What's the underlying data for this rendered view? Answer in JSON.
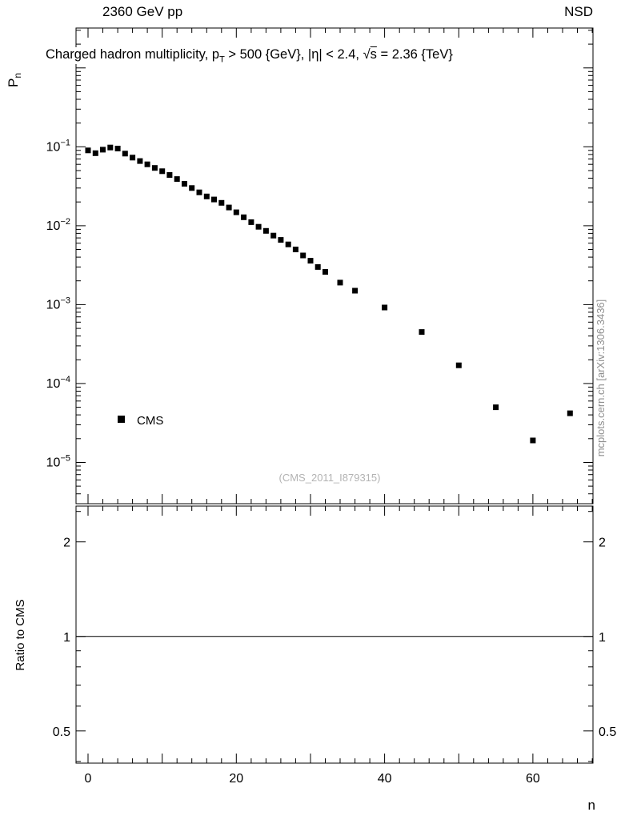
{
  "header": {
    "left": "2360 GeV pp",
    "right": "NSD"
  },
  "chart_data": {
    "type": "scatter",
    "title": "Charged hadron multiplicity, p_T > 500 {GeV}, |eta| < 2.4, sqrt(s) = 2.36 {TeV}",
    "title_parts": {
      "p1": "Charged hadron multiplicity, p",
      "p1_sub": "T",
      "p2": " > 500 {GeV}, |η| < 2.4, ",
      "sqrt_sym": "√",
      "sqrt_arg": "s",
      "p3": " = 2.36 {TeV}"
    },
    "xlabel": "n",
    "ylabel_main": "P",
    "ylabel_sub": "n",
    "ratio_ylabel": "Ratio to CMS",
    "watermark": "(CMS_2011_I879315)",
    "side_note": "mcplots.cern.ch [arXiv:1306.3436]",
    "legend": [
      {
        "label": "CMS",
        "marker": "filled-square",
        "color": "#000000"
      }
    ],
    "legend_position": "inside-left",
    "grid": false,
    "x_range": [
      -1.62,
      68.1
    ],
    "x_major_ticks": [
      0,
      20,
      40,
      60
    ],
    "x_major_step": 10,
    "x_minor_step": 2,
    "y_scale": "log",
    "y_range": [
      3e-06,
      3.2
    ],
    "y_decades": [
      -5,
      -4,
      -3,
      -2,
      -1
    ],
    "ratio_scale": "log",
    "ratio_range": [
      0.395,
      2.6
    ],
    "ratio_ticks": [
      0.5,
      1,
      2
    ],
    "ratio_minor_ticks": [
      0.4,
      0.6,
      0.7,
      0.8,
      0.9,
      2.5
    ],
    "ratio_line": 1.0,
    "series": [
      {
        "name": "CMS",
        "marker": "filled-square",
        "color": "#000000",
        "points": [
          [
            0,
            0.09
          ],
          [
            1,
            0.083
          ],
          [
            2,
            0.092
          ],
          [
            3,
            0.098
          ],
          [
            4,
            0.095
          ],
          [
            5,
            0.082
          ],
          [
            6,
            0.073
          ],
          [
            7,
            0.066
          ],
          [
            8,
            0.06
          ],
          [
            9,
            0.054
          ],
          [
            10,
            0.049
          ],
          [
            11,
            0.044
          ],
          [
            12,
            0.039
          ],
          [
            13,
            0.034
          ],
          [
            14,
            0.03
          ],
          [
            15,
            0.0265
          ],
          [
            16,
            0.0235
          ],
          [
            17,
            0.0215
          ],
          [
            18,
            0.0195
          ],
          [
            19,
            0.017
          ],
          [
            20,
            0.0148
          ],
          [
            21,
            0.0128
          ],
          [
            22,
            0.0111
          ],
          [
            23,
            0.0097
          ],
          [
            24,
            0.0086
          ],
          [
            25,
            0.0075
          ],
          [
            26,
            0.0066
          ],
          [
            27,
            0.0058
          ],
          [
            28,
            0.005
          ],
          [
            29,
            0.0042
          ],
          [
            30,
            0.0036
          ],
          [
            31,
            0.003
          ],
          [
            32,
            0.0026
          ],
          [
            34,
            0.0019
          ],
          [
            36,
            0.0015
          ],
          [
            40,
            0.00092
          ],
          [
            45,
            0.00045
          ],
          [
            50,
            0.00017
          ],
          [
            55,
            5e-05
          ],
          [
            60,
            1.9e-05
          ],
          [
            65,
            4.2e-05
          ]
        ]
      }
    ]
  }
}
